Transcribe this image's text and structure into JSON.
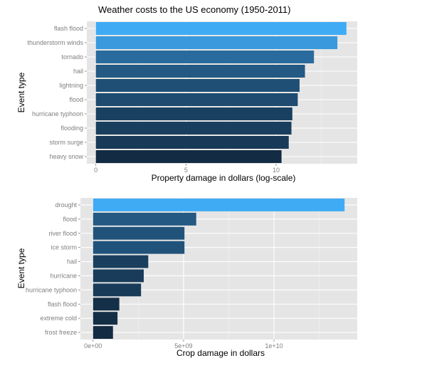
{
  "chart_data": [
    {
      "type": "bar",
      "orientation": "horizontal",
      "title": "Weather costs to the US economy (1950-2011)",
      "xlabel": "Property damage in dollars (log-scale)",
      "ylabel": "Event type",
      "categories": [
        "flash flood",
        "thunderstorm winds",
        "tornado",
        "hail",
        "lightning",
        "flood",
        "hurricane typhoon",
        "flooding",
        "storm surge",
        "heavy snow"
      ],
      "values": [
        13.9,
        13.4,
        12.1,
        11.6,
        11.3,
        11.2,
        10.9,
        10.85,
        10.7,
        10.3
      ],
      "xlim": [
        -0.5,
        14.5
      ],
      "xticks": [
        0,
        5,
        10
      ],
      "xtick_labels": [
        "0",
        "5",
        "10"
      ],
      "grid": true,
      "fill": {
        "low": "#132b43",
        "high": "#3fabf5"
      }
    },
    {
      "type": "bar",
      "orientation": "horizontal",
      "title": "",
      "xlabel": "Crop damage in dollars",
      "ylabel": "Event type",
      "categories": [
        "drought",
        "flood",
        "river flood",
        "ice storm",
        "hail",
        "hurricane",
        "hurricane typhoon",
        "flash flood",
        "extreme cold",
        "frost freeze"
      ],
      "values": [
        13900000000,
        5700000000,
        5050000000,
        5050000000,
        3050000000,
        2800000000,
        2650000000,
        1450000000,
        1350000000,
        1100000000
      ],
      "xlim": [
        -700000000,
        14600000000
      ],
      "xticks": [
        0,
        5000000000,
        10000000000
      ],
      "xtick_labels": [
        "0e+00",
        "5e+09",
        "1e+10"
      ],
      "grid": true,
      "fill": {
        "low": "#132b43",
        "high": "#3fabf5"
      }
    }
  ]
}
